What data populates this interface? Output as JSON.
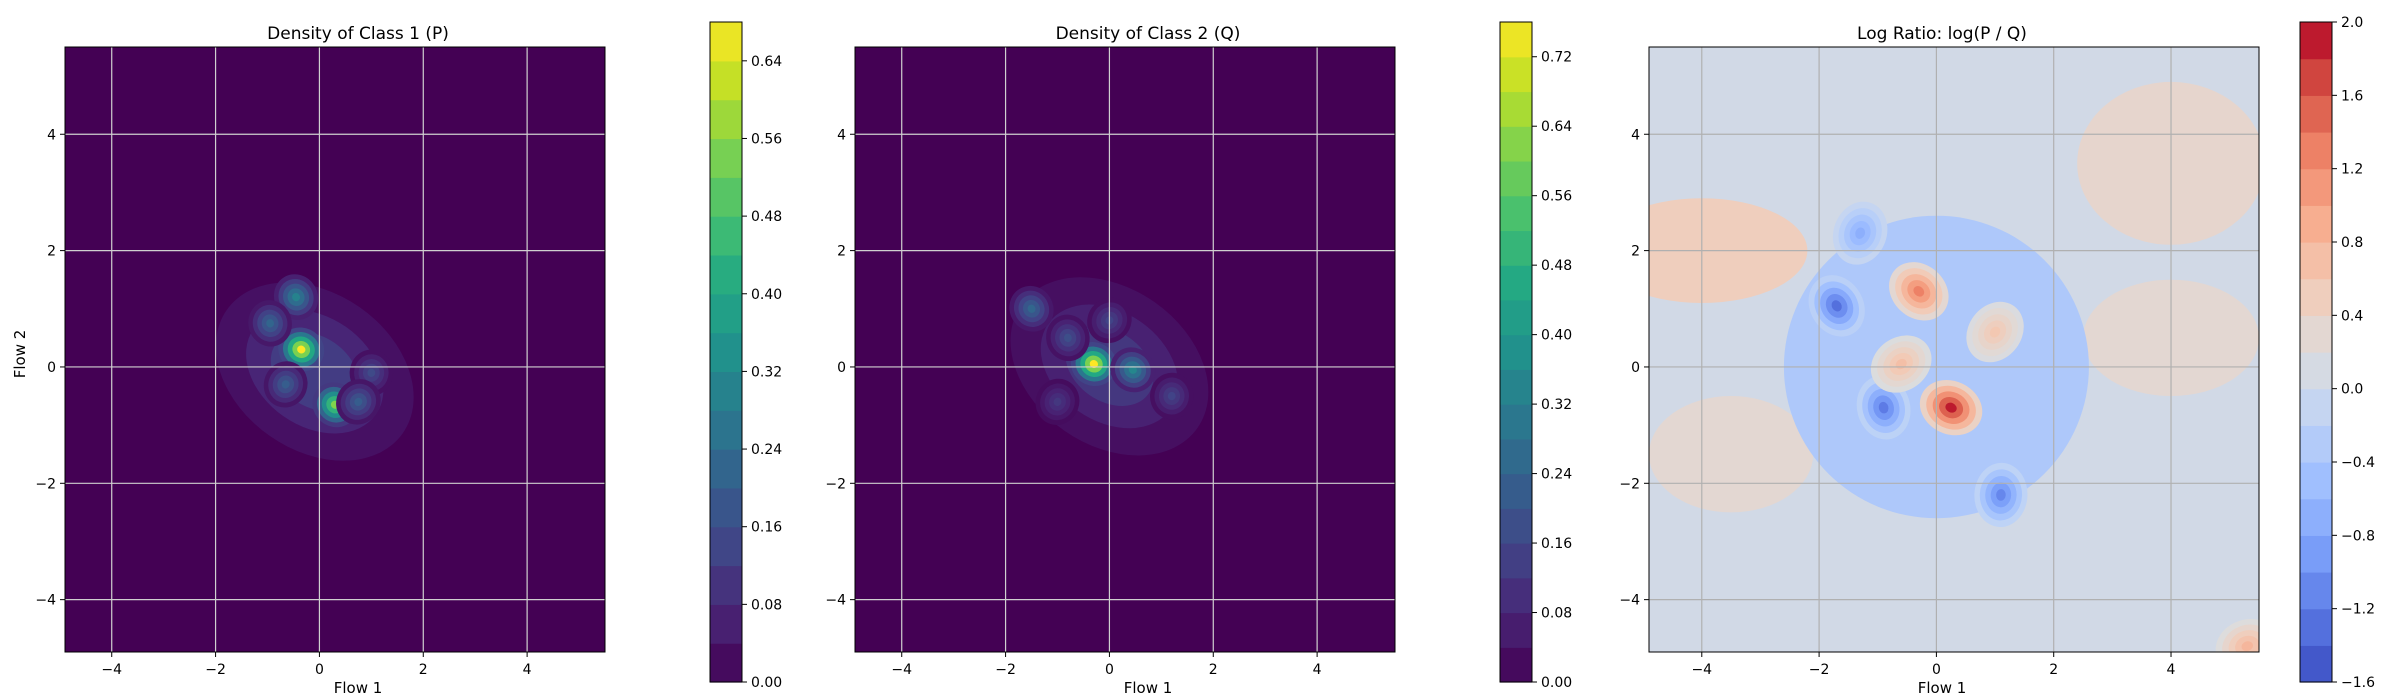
{
  "chart_data": [
    {
      "type": "heatmap",
      "title": "Density of Class 1 (P)",
      "xlabel": "Flow 1",
      "ylabel": "Flow 2",
      "xlim": [
        -4.9,
        5.5
      ],
      "ylim": [
        -4.9,
        5.5
      ],
      "xticks": [
        -4,
        -2,
        0,
        2,
        4
      ],
      "yticks": [
        -4,
        -2,
        0,
        2,
        4
      ],
      "grid": true,
      "colormap": "viridis",
      "colorbar": {
        "min": 0.0,
        "max": 0.68,
        "ticks": [
          0.0,
          0.08,
          0.16,
          0.24,
          0.32,
          0.4,
          0.48,
          0.56,
          0.64
        ]
      },
      "peaks": [
        {
          "x": -0.35,
          "y": 0.3,
          "value": 0.68
        },
        {
          "x": 0.3,
          "y": -0.65,
          "value": 0.55
        },
        {
          "x": -0.45,
          "y": 1.2,
          "value": 0.3
        },
        {
          "x": -0.95,
          "y": 0.75,
          "value": 0.22
        },
        {
          "x": 1.0,
          "y": -0.1,
          "value": 0.15
        },
        {
          "x": -0.65,
          "y": -0.3,
          "value": 0.2
        },
        {
          "x": 0.75,
          "y": -0.6,
          "value": 0.2
        }
      ]
    },
    {
      "type": "heatmap",
      "title": "Density of Class 2 (Q)",
      "xlabel": "Flow 1",
      "ylabel": "",
      "xlim": [
        -4.9,
        5.5
      ],
      "ylim": [
        -4.9,
        5.5
      ],
      "xticks": [
        -4,
        -2,
        0,
        2,
        4
      ],
      "yticks": [
        -4,
        -2,
        0,
        2,
        4
      ],
      "grid": true,
      "colormap": "viridis",
      "colorbar": {
        "min": 0.0,
        "max": 0.76,
        "ticks": [
          0.0,
          0.08,
          0.16,
          0.24,
          0.32,
          0.4,
          0.48,
          0.56,
          0.64,
          0.72
        ]
      },
      "peaks": [
        {
          "x": -0.3,
          "y": 0.05,
          "value": 0.76
        },
        {
          "x": 0.45,
          "y": -0.05,
          "value": 0.35
        },
        {
          "x": -1.5,
          "y": 1.0,
          "value": 0.25
        },
        {
          "x": -0.8,
          "y": 0.5,
          "value": 0.18
        },
        {
          "x": 1.2,
          "y": -0.5,
          "value": 0.15
        },
        {
          "x": -1.0,
          "y": -0.6,
          "value": 0.12
        },
        {
          "x": 0.0,
          "y": 0.8,
          "value": 0.15
        }
      ]
    },
    {
      "type": "heatmap",
      "title": "Log Ratio: log(P / Q)",
      "xlabel": "Flow 1",
      "ylabel": "",
      "xlim": [
        -4.9,
        5.5
      ],
      "ylim": [
        -4.9,
        5.5
      ],
      "xticks": [
        -4,
        -2,
        0,
        2,
        4
      ],
      "yticks": [
        -4,
        -2,
        0,
        2,
        4
      ],
      "grid": true,
      "colormap": "coolwarm",
      "colorbar": {
        "min": -1.6,
        "max": 2.0,
        "ticks": [
          -1.6,
          -1.2,
          -0.8,
          -0.4,
          0.0,
          0.4,
          0.8,
          1.2,
          1.6,
          2.0
        ]
      },
      "peaks": [
        {
          "x": 0.25,
          "y": -0.7,
          "value": 1.9
        },
        {
          "x": -0.3,
          "y": 1.3,
          "value": 1.3
        },
        {
          "x": -1.7,
          "y": 1.05,
          "value": -1.3
        },
        {
          "x": -0.9,
          "y": -0.7,
          "value": -1.2
        },
        {
          "x": 1.1,
          "y": -2.2,
          "value": -1.1
        },
        {
          "x": -1.3,
          "y": 2.3,
          "value": -0.7
        },
        {
          "x": 1.0,
          "y": 0.6,
          "value": 0.6
        },
        {
          "x": -0.6,
          "y": 0.05,
          "value": 0.7
        },
        {
          "x": 5.3,
          "y": -4.8,
          "value": 0.8
        }
      ]
    }
  ]
}
